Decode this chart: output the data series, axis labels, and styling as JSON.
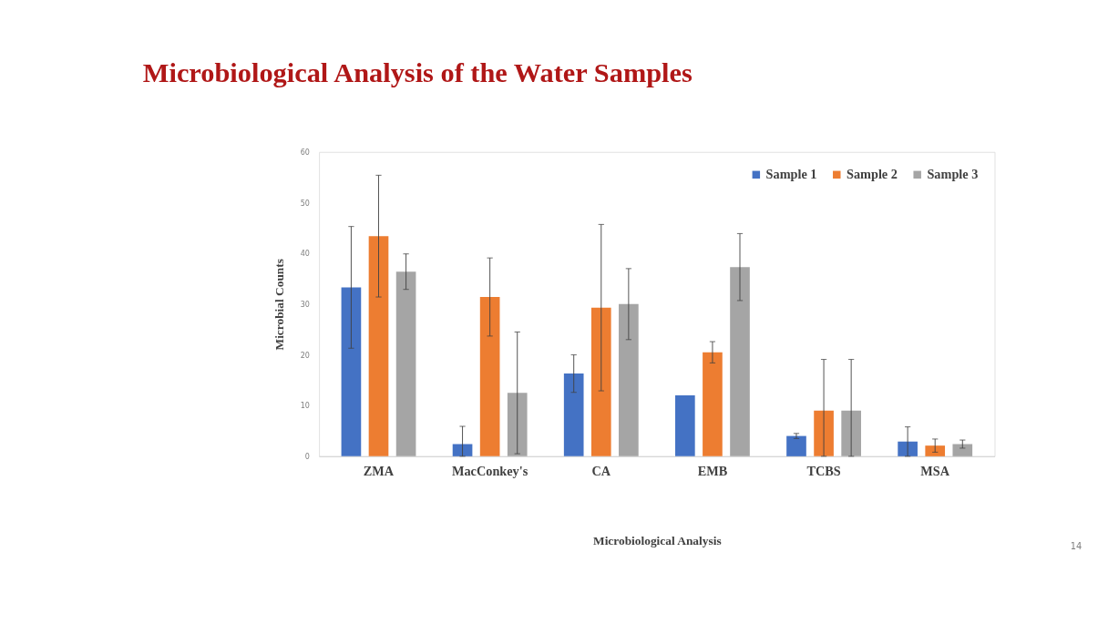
{
  "chart_data": {
    "type": "bar",
    "title": "Microbiological Analysis of the Water Samples",
    "xlabel": "Microbiological  Analysis",
    "ylabel": "Microbial Counts",
    "categories": [
      "ZMA",
      "MacConkey's",
      "CA",
      "EMB",
      "TCBS",
      "MSA"
    ],
    "series": [
      {
        "name": "Sample 1",
        "color": "#4472c4",
        "values": [
          33.3,
          2.4,
          16.3,
          12.0,
          4.0,
          2.9
        ],
        "errors": [
          12,
          [
            0,
            5.9
          ],
          3.7,
          null,
          0.5,
          [
            0,
            5.8
          ]
        ]
      },
      {
        "name": "Sample 2",
        "color": "#ed7d31",
        "values": [
          43.4,
          31.4,
          29.3,
          20.5,
          9.0,
          2.1
        ],
        "errors": [
          12,
          7.7,
          16.4,
          2.1,
          [
            0,
            19.1
          ],
          1.3
        ]
      },
      {
        "name": "Sample 3",
        "color": "#a5a5a5",
        "values": [
          36.4,
          12.5,
          30.0,
          37.3,
          9.0,
          2.4
        ],
        "errors": [
          3.5,
          12,
          7,
          6.6,
          [
            0,
            19.1
          ],
          0.8
        ]
      }
    ],
    "ylim": [
      0,
      60
    ],
    "yticks": [
      0,
      10,
      20,
      30,
      40,
      50,
      60
    ],
    "grid": false,
    "legend": "top right",
    "annotations": [
      "14"
    ]
  }
}
